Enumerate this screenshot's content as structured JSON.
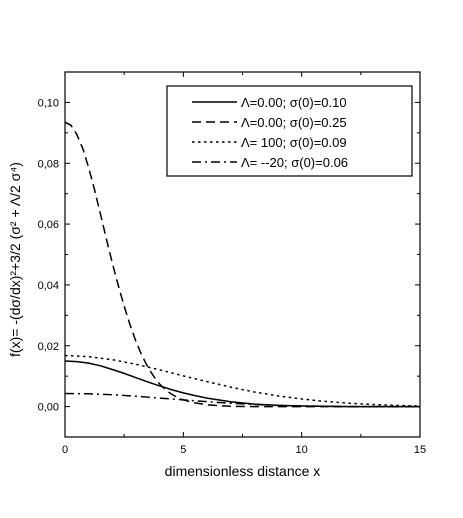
{
  "chart_data": {
    "type": "line",
    "xlabel": "dimensionless distance x",
    "ylabel": "f(x)= -(dσ/dx)²+3/2 (σ² + Λ/2 σ⁴)",
    "xlim": [
      0,
      15
    ],
    "ylim": [
      -0.01,
      0.11
    ],
    "xticks": [
      "0",
      "5",
      "10",
      "15"
    ],
    "yticks": [
      "0,00",
      "0,02",
      "0,04",
      "0,06",
      "0,08",
      "0,10"
    ],
    "grid": false,
    "legend_position": "top-right",
    "series": [
      {
        "name": "Λ=0.00; σ(0)=0.10",
        "style": "solid",
        "x": [
          0,
          0.5,
          1,
          1.5,
          2,
          2.5,
          3,
          3.5,
          4,
          4.5,
          5,
          5.5,
          6,
          7,
          8,
          9,
          10,
          11,
          12,
          13,
          14,
          15
        ],
        "y": [
          0.015,
          0.0148,
          0.0143,
          0.0134,
          0.0122,
          0.0109,
          0.0095,
          0.0081,
          0.0068,
          0.0056,
          0.0045,
          0.0036,
          0.0028,
          0.0016,
          0.0008,
          0.0004,
          0.0002,
          0.0001,
          0.0,
          0.0,
          0.0,
          0.0
        ]
      },
      {
        "name": "Λ=0.00; σ(0)=0.25",
        "style": "dash",
        "x": [
          0,
          0.25,
          0.5,
          0.75,
          1,
          1.25,
          1.5,
          1.75,
          2,
          2.25,
          2.5,
          2.75,
          3,
          3.25,
          3.5,
          3.75,
          4,
          4.25,
          4.5,
          4.75,
          5,
          5.5,
          6,
          6.5,
          7,
          8,
          9,
          10,
          12,
          15
        ],
        "y": [
          0.0935,
          0.0925,
          0.0895,
          0.0848,
          0.0785,
          0.0712,
          0.0632,
          0.0551,
          0.0472,
          0.0398,
          0.033,
          0.0268,
          0.0214,
          0.0168,
          0.013,
          0.0099,
          0.0074,
          0.0055,
          0.0041,
          0.003,
          0.0022,
          0.0012,
          0.0006,
          0.0003,
          0.0001,
          0.0,
          0.0,
          0.0,
          0.0,
          0.0
        ]
      },
      {
        "name": "Λ= 100; σ(0)=0.09",
        "style": "dot",
        "x": [
          0,
          1,
          2,
          3,
          4,
          5,
          6,
          7,
          8,
          9,
          10,
          11,
          12,
          13,
          14,
          15
        ],
        "y": [
          0.0168,
          0.0164,
          0.0154,
          0.0139,
          0.0121,
          0.0101,
          0.0082,
          0.0064,
          0.0048,
          0.0035,
          0.0025,
          0.0017,
          0.0011,
          0.0007,
          0.0004,
          0.0002
        ]
      },
      {
        "name": "Λ= --20; σ(0)=0.06",
        "style": "dashdot",
        "x": [
          0,
          1,
          2,
          3,
          4,
          5,
          6,
          7,
          8,
          9,
          10,
          11,
          12,
          13,
          14,
          15
        ],
        "y": [
          0.0043,
          0.0042,
          0.0039,
          0.0034,
          0.0028,
          0.0022,
          0.0016,
          0.0011,
          0.0007,
          0.0004,
          0.0002,
          0.0001,
          0.0,
          0.0,
          0.0,
          0.0
        ]
      }
    ]
  }
}
